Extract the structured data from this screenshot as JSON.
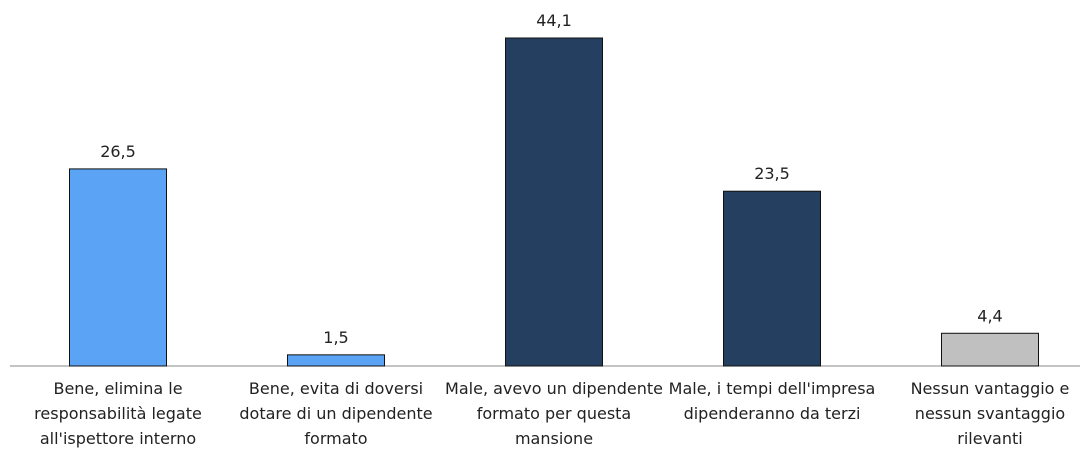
{
  "chart_data": {
    "type": "bar",
    "categories": [
      "Bene, elimina le responsabilità legate all'ispettore interno",
      "Bene, evita di doversi dotare di un dipendente formato",
      "Male, avevo un dipendente formato per questa mansione",
      "Male, i tempi dell'impresa dipenderanno da terzi",
      "Nessun vantaggio e nessun svantaggio rilevanti"
    ],
    "values": [
      26.5,
      1.5,
      44.1,
      23.5,
      4.4
    ],
    "value_labels": [
      "26,5",
      "1,5",
      "44,1",
      "23,5",
      "4,4"
    ],
    "colors": [
      "#5ba3f5",
      "#5ba3f5",
      "#243f60",
      "#243f60",
      "#c0c0c0"
    ]
  }
}
